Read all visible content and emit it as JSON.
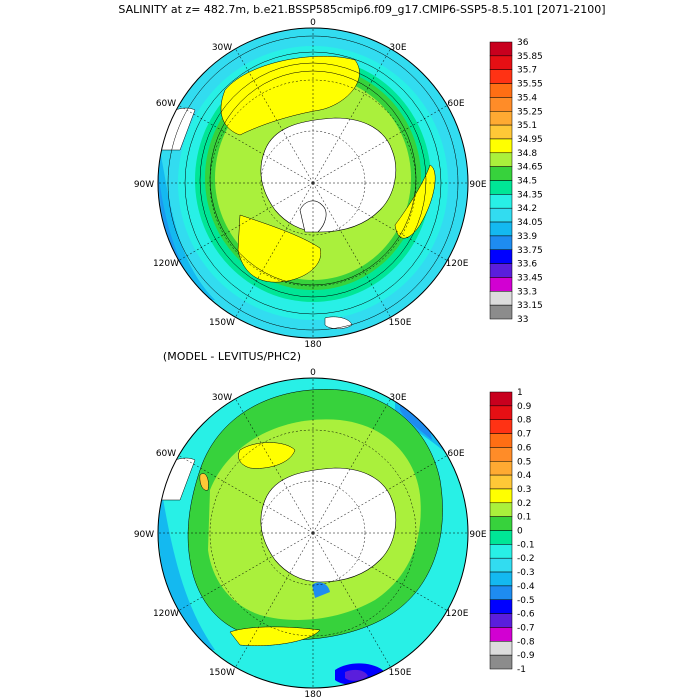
{
  "panels": [
    {
      "title": "SALINITY at z= 482.7m, b.e21.BSSP585cmip6.f09_g17.CMIP6-SSP5-8.5.101 [2071-2100]",
      "lon_labels": [
        "0",
        "30E",
        "60E",
        "90E",
        "120E",
        "150E",
        "180",
        "150W",
        "120W",
        "90W",
        "60W",
        "30W"
      ],
      "colorbar": {
        "labels": [
          "36",
          "35.85",
          "35.7",
          "35.55",
          "35.4",
          "35.25",
          "35.1",
          "34.95",
          "34.8",
          "34.65",
          "34.5",
          "34.35",
          "34.2",
          "34.05",
          "33.9",
          "33.75",
          "33.6",
          "33.45",
          "33.3",
          "33.15",
          "33"
        ],
        "colors": [
          "#c8001e",
          "#e60f14",
          "#ff3214",
          "#ff6e14",
          "#ff8c28",
          "#ffaa32",
          "#ffc837",
          "#ffff00",
          "#aaf03c",
          "#37d23c",
          "#00e696",
          "#28f0e6",
          "#32dcf0",
          "#14b9f0",
          "#1e8cf0",
          "#0000ff",
          "#5a1edc",
          "#d200d2",
          "#dcdcdc",
          "#8c8c8c"
        ]
      }
    },
    {
      "title": "(MODEL - LEVITUS/PHC2)",
      "lon_labels": [
        "0",
        "30E",
        "60E",
        "90E",
        "120E",
        "150E",
        "180",
        "150W",
        "120W",
        "90W",
        "60W",
        "30W"
      ],
      "colorbar": {
        "labels": [
          "1",
          "0.9",
          "0.8",
          "0.7",
          "0.6",
          "0.5",
          "0.4",
          "0.3",
          "0.2",
          "0.1",
          "0",
          "-0.1",
          "-0.2",
          "-0.3",
          "-0.4",
          "-0.5",
          "-0.6",
          "-0.7",
          "-0.8",
          "-0.9",
          "-1"
        ],
        "colors": [
          "#c8001e",
          "#e60f14",
          "#ff3214",
          "#ff6e14",
          "#ff8c28",
          "#ffaa32",
          "#ffc837",
          "#ffff00",
          "#aaf03c",
          "#37d23c",
          "#00e696",
          "#28f0e6",
          "#32dcf0",
          "#14b9f0",
          "#1e8cf0",
          "#0000ff",
          "#5a1edc",
          "#d200d2",
          "#dcdcdc",
          "#8c8c8c"
        ]
      }
    }
  ]
}
